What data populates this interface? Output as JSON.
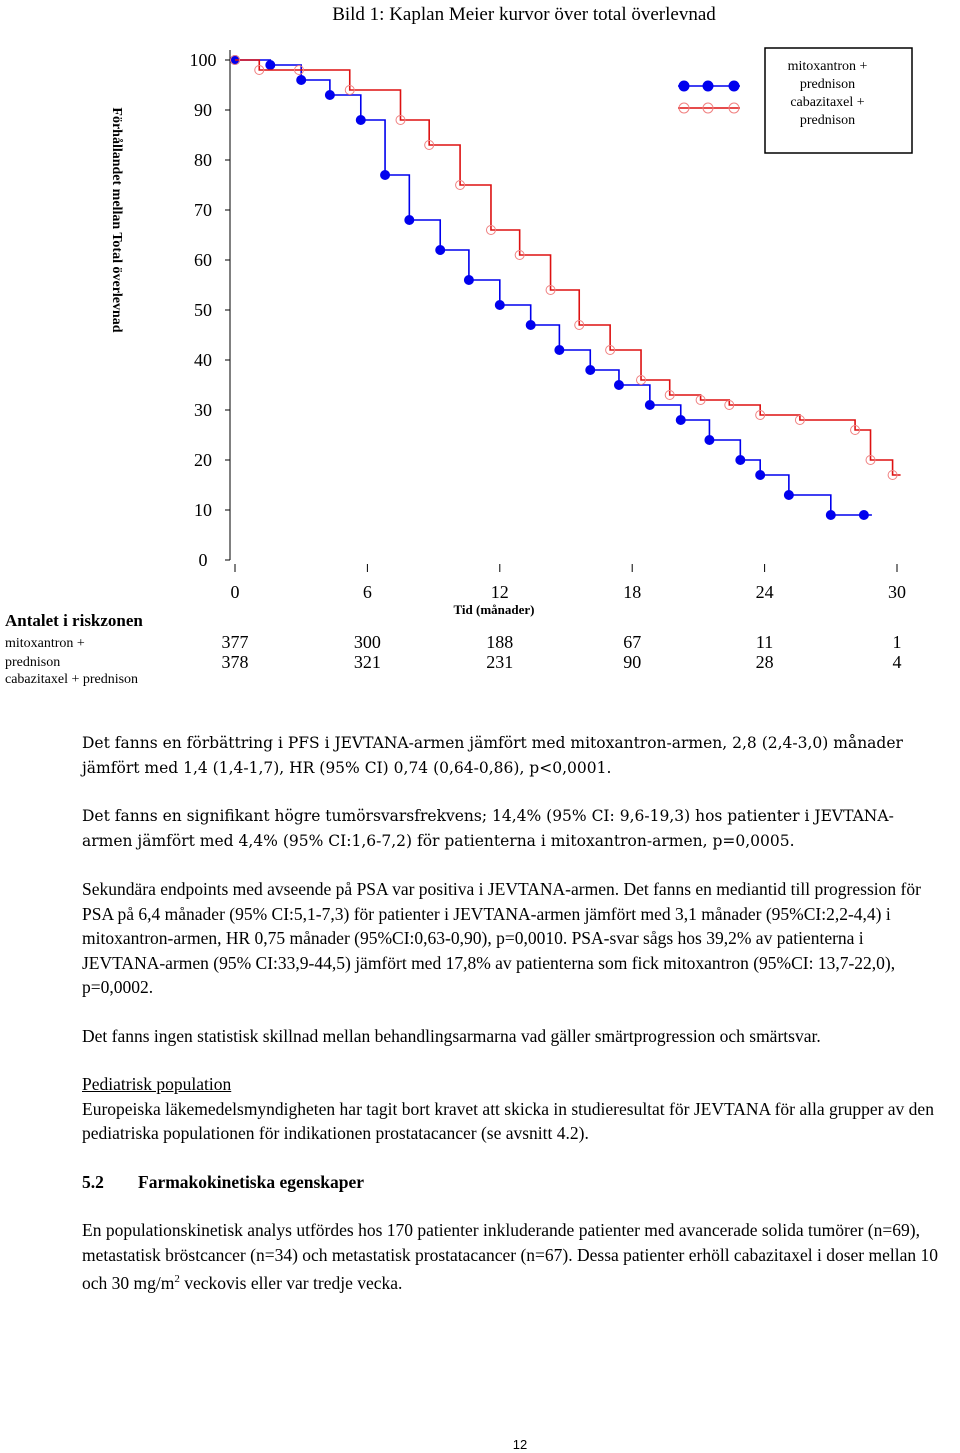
{
  "chart_data": {
    "type": "line",
    "step": true,
    "title": "Bild 1: Kaplan Meier kurvor över total överlevnad",
    "y_label": "Förhållandet mellan Total överlevnad",
    "x_label": "Tid (månader)",
    "xlim": [
      0,
      30
    ],
    "xticks": [
      0,
      6,
      12,
      18,
      24,
      30
    ],
    "ylim": [
      0,
      100
    ],
    "yticks": [
      0,
      10,
      20,
      30,
      40,
      50,
      60,
      70,
      80,
      90,
      100
    ],
    "legend": "top-right",
    "series": [
      {
        "name": "mitoxantron + prednison",
        "color": "#0000ee",
        "x": [
          0,
          1.6,
          3,
          4.3,
          5.7,
          6.8,
          7.9,
          9.3,
          10.6,
          12,
          13.4,
          14.7,
          16.1,
          17.4,
          18.8,
          20.2,
          21.5,
          22.9,
          23.8,
          25.1,
          27,
          28.5
        ],
        "values": [
          100,
          99,
          96,
          93,
          88,
          77,
          68,
          62,
          56,
          51,
          47,
          42,
          38,
          35,
          31,
          28,
          24,
          20,
          17,
          13,
          9,
          9
        ]
      },
      {
        "name": "cabazitaxel + prednison",
        "color": "#dd1111",
        "x": [
          0,
          1.1,
          2.9,
          5.2,
          7.5,
          8.8,
          10.2,
          11.6,
          12.9,
          14.3,
          15.6,
          17,
          18.4,
          19.7,
          21.1,
          22.4,
          23.8,
          25.6,
          28.1,
          28.8,
          29.8
        ],
        "values": [
          100,
          98,
          98,
          94,
          88,
          83,
          75,
          66,
          61,
          54,
          47,
          42,
          36,
          33,
          32,
          31,
          29,
          28,
          26,
          20,
          17
        ]
      }
    ]
  },
  "risk_table": {
    "title": "Antalet i riskzonen",
    "rows": [
      {
        "label": "mitoxantron + prednison",
        "values": [
          377,
          300,
          188,
          67,
          11,
          1
        ]
      },
      {
        "label": "cabazitaxel + prednison",
        "values": [
          378,
          321,
          231,
          90,
          28,
          4
        ]
      }
    ]
  },
  "document": {
    "paragraphs": [
      [
        "Det fanns en förbättring i PFS i JEVTANA-armen jämfört med mitoxantron-armen, 2,8 (2,4-3,0) månader jämfört med 1,4 (1,4-1,7), HR (95% CI) 0,74 (0,64-0,86), p<0,0001."
      ],
      [
        "Det fanns en signifikant högre tumörsvarsfrekvens; 14,4% (95% CI: 9,6-19,3) hos patienter i JEVTANA-armen jämfört med 4,4% (95% CI:1,6-7,2) för patienterna i mitoxantron-armen, p=0,0005."
      ],
      [
        "Sekundära endpoints med avseende på PSA var positiva i JEVTANA-armen. Det fanns en mediantid till progression för PSA på 6,4 månader (95% CI:5,1-7,3) för patienter i JEVTANA-armen jämfört med 3,1 månader (95%CI:2,2-4,4) i mitoxantron-armen, HR 0,75 månader (95%CI:0,63-0,90), p=0,0010. PSA-svar sågs hos 39,2% av patienterna i JEVTANA-armen (95% CI:33,9-44,5) jämfört med 17,8% av patienterna som fick mitoxantron (95%CI: 13,7-22,0), p=0,0002."
      ],
      [
        "Det fanns ingen statistisk skillnad mellan behandlingsarmarna vad gäller smärtprogression och smärtsvar."
      ]
    ],
    "pediatric_heading": "Pediatrisk population",
    "pediatric_text": "Europeiska läkemedelsmyndigheten har tagit bort kravet att skicka in studieresultat för JEVTANA för alla grupper av den pediatriska populationen för indikationen prostatacancer (se avsnitt 4.2).",
    "section_number": "5.2",
    "section_title": "Farmakokinetiska egenskaper",
    "pk_text": [
      "En populationskinetisk analys utfördes hos 170 patienter inkluderande patienter med avancerade solida tumörer (n=69), metastatisk bröstcancer (n=34) och metastatisk prostatacancer (n=67). Dessa patienter erhöll cabazitaxel i doser mellan 10 och 30 mg/m",
      "2",
      " veckovis eller var tredje vecka."
    ]
  },
  "page_number": "12"
}
